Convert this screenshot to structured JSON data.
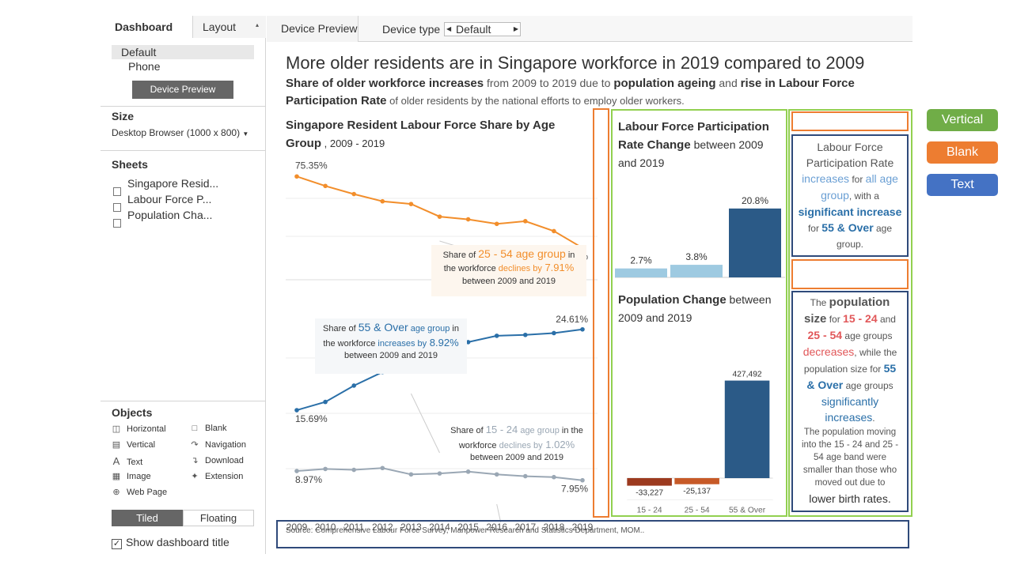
{
  "sidebar": {
    "tabs": [
      "Dashboard",
      "Layout"
    ],
    "devices": [
      "Default",
      "Phone"
    ],
    "device_preview_button": "Device Preview",
    "size_title": "Size",
    "size_value": "Desktop Browser (1000 x 800)",
    "sheets_title": "Sheets",
    "sheets": [
      "Singapore Resid...",
      "Labour Force P...",
      "Population Cha..."
    ],
    "objects_title": "Objects",
    "objects": [
      {
        "label": "Horizontal",
        "icon": "horizontal-icon"
      },
      {
        "label": "Blank",
        "icon": "blank-icon"
      },
      {
        "label": "Vertical",
        "icon": "vertical-icon"
      },
      {
        "label": "Navigation",
        "icon": "navigation-icon"
      },
      {
        "label": "Text",
        "icon": "text-icon"
      },
      {
        "label": "Download",
        "icon": "download-icon"
      },
      {
        "label": "Image",
        "icon": "image-icon"
      },
      {
        "label": "Extension",
        "icon": "extension-icon"
      },
      {
        "label": "Web Page",
        "icon": "webpage-icon"
      }
    ],
    "tiled": "Tiled",
    "floating": "Floating",
    "show_title": "Show dashboard title"
  },
  "topbar": {
    "device_preview_tab": "Device Preview",
    "device_type_label": "Device type",
    "device_type_value": "Default"
  },
  "dashboard": {
    "title": "More older residents are in Singapore workforce in 2019 compared to 2009",
    "sub1_bold": "Share of older workforce increases",
    "sub1_a": " from 2009 to 2019 due to ",
    "sub1_bold2": "population ageing",
    "sub1_b": " and ",
    "sub1_bold3": "rise in Labour Force",
    "sub2_bold": "Participation Rate",
    "sub2_a": " of older residents by the national efforts to employ older workers.",
    "source": "Source: Comprehensive Labour Force Survey, Manpower Research and Statistics Department, MOM.."
  },
  "line_chart": {
    "title1": "Singapore Resident Labour Force Share by Age",
    "title2a": "Group",
    "title2b": " , 2009 - 2019",
    "ann_25_54": {
      "a": "Share of ",
      "b": "25 - 54 age group",
      "c": " in",
      "d": "the workforce ",
      "e": "declines by",
      "f": " 7.91%",
      "g": "between 2009 and 2019"
    },
    "ann_55": {
      "a": "Share of ",
      "b": "55 & Over",
      "c": " age group",
      "d": " in",
      "e": "the workforce ",
      "f": "increases by",
      "g": " 8.92%",
      "h": "between 2009 and 2019"
    },
    "ann_15_24": {
      "a": "Share of ",
      "b": "15 - 24",
      "c": " age group",
      "d": " in the",
      "e": "workforce ",
      "f": "declines by",
      "g": " 1.02%",
      "h": "between 2009 and 2019"
    }
  },
  "chart_data": [
    {
      "type": "line",
      "x": [
        2009,
        2010,
        2011,
        2012,
        2013,
        2014,
        2015,
        2016,
        2017,
        2018,
        2019
      ],
      "series": [
        {
          "name": "25 - 54",
          "values": [
            75.35,
            74.3,
            73.4,
            72.6,
            72.3,
            70.9,
            70.6,
            70.1,
            70.4,
            69.3,
            67.44
          ],
          "color": "#f28e2b",
          "start_label": "75.35%",
          "end_label": "67.44%"
        },
        {
          "name": "55 & Over",
          "values": [
            15.69,
            16.6,
            18.4,
            19.9,
            21.2,
            23.3,
            23.2,
            23.9,
            24.0,
            24.2,
            24.61
          ],
          "color": "#2a6fa8",
          "start_label": "15.69%",
          "end_label": "24.61%"
        },
        {
          "name": "15 - 24",
          "values": [
            8.97,
            9.2,
            9.1,
            9.3,
            8.6,
            8.7,
            8.9,
            8.6,
            8.4,
            8.3,
            7.95
          ],
          "color": "#9aa7b4",
          "start_label": "8.97%",
          "end_label": "7.95%"
        }
      ]
    },
    {
      "type": "bar",
      "title": "Labour Force Participation Rate Change between 2009 and 2019",
      "categories": [
        "15 - 24",
        "25 - 54",
        "55 & Over"
      ],
      "values": [
        2.7,
        3.8,
        20.8
      ],
      "labels": [
        "2.7%",
        "3.8%",
        "20.8%"
      ],
      "colors": [
        "#9ecae1",
        "#9ecae1",
        "#2b5a87"
      ]
    },
    {
      "type": "bar",
      "title": "Population Change between 2009 and 2019",
      "categories": [
        "15 - 24",
        "25 - 54",
        "55 & Over"
      ],
      "values": [
        -33227,
        -25137,
        427492
      ],
      "labels": [
        "-33,227",
        "-25,137",
        "427,492"
      ],
      "colors": [
        "#9c3a1f",
        "#c75a28",
        "#2b5a87"
      ]
    }
  ],
  "lfpr_chart": {
    "title_bold1": "Labour Force Participation",
    "title_bold2": "Rate Change",
    "title_rest": " between 2009",
    "title_line3": "and 2019"
  },
  "pop_chart": {
    "title_bold": "Population Change",
    "title_rest": " between",
    "title_line2": "2009 and 2019"
  },
  "text1": {
    "l1": "Labour Force",
    "l2": "Participation Rate",
    "l3a": "increases",
    "l3b": " for ",
    "l3c": "all age",
    "l4a": "group",
    "l4b": ", with a",
    "l5": "significant increase",
    "l6a": "for ",
    "l6b": "55 & Over",
    "l6c": " age",
    "l7": "group."
  },
  "text2": {
    "l1a": "The ",
    "l1b": "population",
    "l2a": "size",
    "l2b": " for ",
    "l2c": "15 - 24",
    "l2d": " and",
    "l3a": "25 - 54",
    "l3b": " age groups",
    "l4a": "decreases",
    "l4b": ", while the",
    "l5a": "population size for ",
    "l5b": "55",
    "l6a": "& Over",
    "l6b": " age groups",
    "l7": "significantly",
    "l8": "increases",
    "l8b": ".",
    "l9": "The population moving",
    "l10": "into the 15 - 24 and 25 -",
    "l11": "54 age band were",
    "l12": "smaller than those who",
    "l13": "moved out due to",
    "l14": "lower birth rates."
  },
  "legend": [
    {
      "label": "Vertical",
      "color": "#70ad47"
    },
    {
      "label": "Blank",
      "color": "#ed7d31"
    },
    {
      "label": "Text",
      "color": "#4472c4"
    }
  ]
}
